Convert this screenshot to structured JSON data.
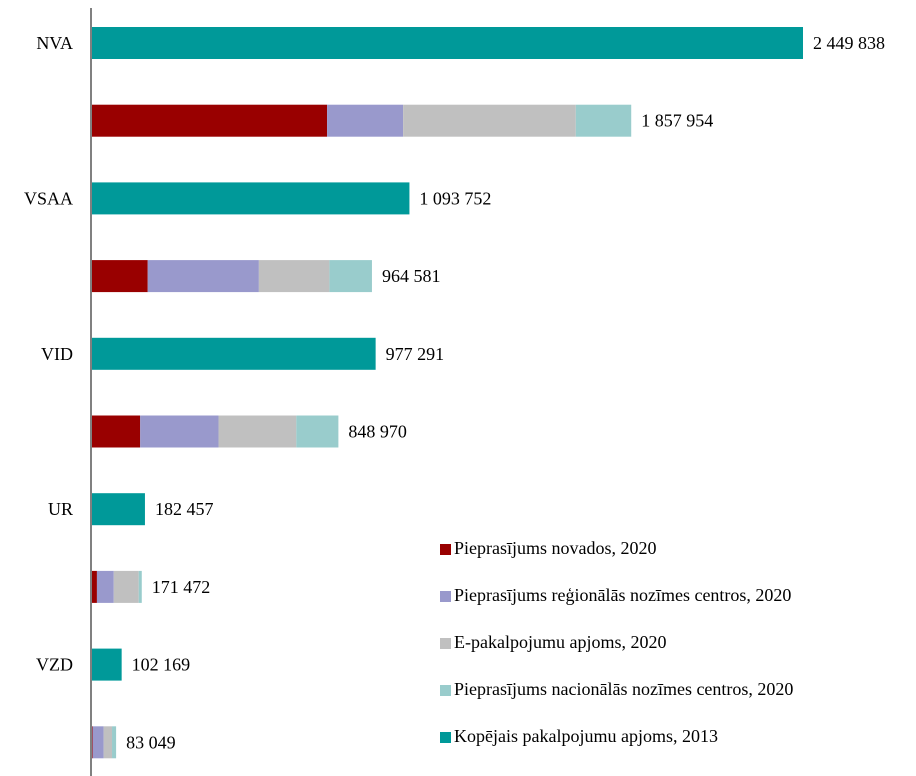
{
  "chart_data": {
    "type": "bar",
    "orientation": "horizontal",
    "stacked": true,
    "colors": {
      "novados": "#990000",
      "regionalas": "#9999cc",
      "epakalpojumi": "#c0c0c0",
      "nacionalas": "#99cccc",
      "kopejais": "#009999"
    },
    "series": [
      {
        "key": "novados",
        "name": "Pieprasījums novados, 2020"
      },
      {
        "key": "regionalas",
        "name": "Pieprasījums reģionālās nozīmes centros, 2020"
      },
      {
        "key": "epakalpojumi",
        "name": "E-pakalpojumu apjoms, 2020"
      },
      {
        "key": "nacionalas",
        "name": "Pieprasījums nacionālās nozīmes centros, 2020"
      },
      {
        "key": "kopejais",
        "name": "Kopējais pakalpojumu apjoms, 2013"
      }
    ],
    "rows": [
      {
        "category": "NVA",
        "total_label": "2 449 838",
        "values": {
          "kopejais": 2449838
        }
      },
      {
        "category": "",
        "total_label": "1 857 954",
        "values": {
          "novados": 810000,
          "regionalas": 262000,
          "epakalpojumi": 595000,
          "nacionalas": 190954
        }
      },
      {
        "category": "VSAA",
        "total_label": "1 093 752",
        "values": {
          "kopejais": 1093752
        }
      },
      {
        "category": "",
        "total_label": "964 581",
        "values": {
          "novados": 192000,
          "regionalas": 383000,
          "epakalpojumi": 243000,
          "nacionalas": 146581
        }
      },
      {
        "category": "VID",
        "total_label": "977 291",
        "values": {
          "kopejais": 977291
        }
      },
      {
        "category": "",
        "total_label": "848 970",
        "values": {
          "novados": 166000,
          "regionalas": 270000,
          "epakalpojumi": 268000,
          "nacionalas": 144970
        }
      },
      {
        "category": "UR",
        "total_label": "182 457",
        "values": {
          "kopejais": 182457
        }
      },
      {
        "category": "",
        "total_label": "171 472",
        "values": {
          "novados": 17000,
          "regionalas": 58000,
          "epakalpojumi": 86000,
          "nacionalas": 10472
        }
      },
      {
        "category": "VZD",
        "total_label": "102 169",
        "values": {
          "kopejais": 102169
        }
      },
      {
        "category": "",
        "total_label": "83 049",
        "values": {
          "novados": 2000,
          "regionalas": 38000,
          "epakalpojumi": 29000,
          "nacionalas": 14049
        }
      }
    ],
    "xlim": [
      0,
      2700000
    ],
    "legend_position": "bottom-right",
    "grid": false
  }
}
